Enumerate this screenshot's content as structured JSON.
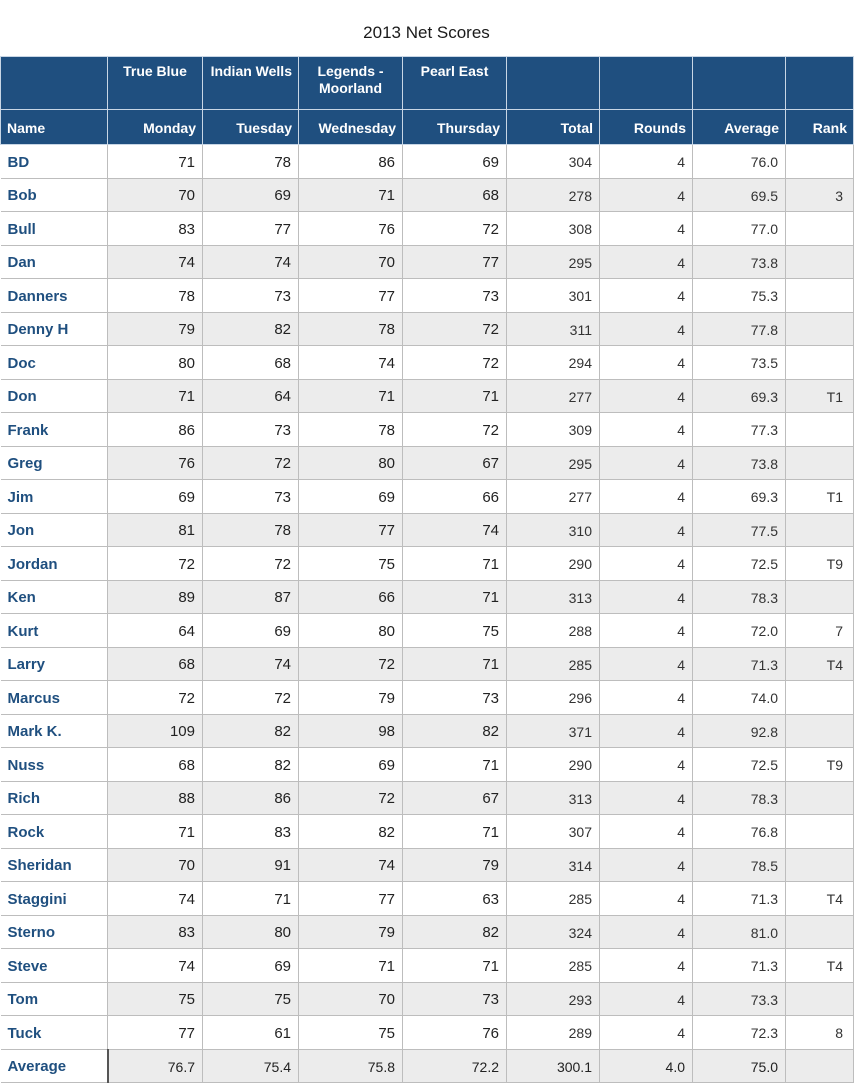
{
  "title": "2013 Net Scores",
  "headers": {
    "courses": [
      "",
      "True Blue",
      "Indian Wells",
      "Legends - Moorland",
      "Pearl East",
      "",
      "",
      "",
      ""
    ],
    "columns": [
      "Name",
      "Monday",
      "Tuesday",
      "Wednesday",
      "Thursday",
      "Total",
      "Rounds",
      "Average",
      "Rank"
    ]
  },
  "rows": [
    {
      "name": "BD",
      "mon": "71",
      "tue": "78",
      "wed": "86",
      "thu": "69",
      "total": "304",
      "rounds": "4",
      "avg": "76.0",
      "rank": ""
    },
    {
      "name": "Bob",
      "mon": "70",
      "tue": "69",
      "wed": "71",
      "thu": "68",
      "total": "278",
      "rounds": "4",
      "avg": "69.5",
      "rank": "3"
    },
    {
      "name": "Bull",
      "mon": "83",
      "tue": "77",
      "wed": "76",
      "thu": "72",
      "total": "308",
      "rounds": "4",
      "avg": "77.0",
      "rank": ""
    },
    {
      "name": "Dan",
      "mon": "74",
      "tue": "74",
      "wed": "70",
      "thu": "77",
      "total": "295",
      "rounds": "4",
      "avg": "73.8",
      "rank": ""
    },
    {
      "name": "Danners",
      "mon": "78",
      "tue": "73",
      "wed": "77",
      "thu": "73",
      "total": "301",
      "rounds": "4",
      "avg": "75.3",
      "rank": ""
    },
    {
      "name": "Denny H",
      "mon": "79",
      "tue": "82",
      "wed": "78",
      "thu": "72",
      "total": "311",
      "rounds": "4",
      "avg": "77.8",
      "rank": ""
    },
    {
      "name": "Doc",
      "mon": "80",
      "tue": "68",
      "wed": "74",
      "thu": "72",
      "total": "294",
      "rounds": "4",
      "avg": "73.5",
      "rank": ""
    },
    {
      "name": "Don",
      "mon": "71",
      "tue": "64",
      "wed": "71",
      "thu": "71",
      "total": "277",
      "rounds": "4",
      "avg": "69.3",
      "rank": "T1"
    },
    {
      "name": "Frank",
      "mon": "86",
      "tue": "73",
      "wed": "78",
      "thu": "72",
      "total": "309",
      "rounds": "4",
      "avg": "77.3",
      "rank": ""
    },
    {
      "name": "Greg",
      "mon": "76",
      "tue": "72",
      "wed": "80",
      "thu": "67",
      "total": "295",
      "rounds": "4",
      "avg": "73.8",
      "rank": ""
    },
    {
      "name": "Jim",
      "mon": "69",
      "tue": "73",
      "wed": "69",
      "thu": "66",
      "total": "277",
      "rounds": "4",
      "avg": "69.3",
      "rank": "T1"
    },
    {
      "name": "Jon",
      "mon": "81",
      "tue": "78",
      "wed": "77",
      "thu": "74",
      "total": "310",
      "rounds": "4",
      "avg": "77.5",
      "rank": ""
    },
    {
      "name": "Jordan",
      "mon": "72",
      "tue": "72",
      "wed": "75",
      "thu": "71",
      "total": "290",
      "rounds": "4",
      "avg": "72.5",
      "rank": "T9"
    },
    {
      "name": "Ken",
      "mon": "89",
      "tue": "87",
      "wed": "66",
      "thu": "71",
      "total": "313",
      "rounds": "4",
      "avg": "78.3",
      "rank": ""
    },
    {
      "name": "Kurt",
      "mon": "64",
      "tue": "69",
      "wed": "80",
      "thu": "75",
      "total": "288",
      "rounds": "4",
      "avg": "72.0",
      "rank": "7"
    },
    {
      "name": "Larry",
      "mon": "68",
      "tue": "74",
      "wed": "72",
      "thu": "71",
      "total": "285",
      "rounds": "4",
      "avg": "71.3",
      "rank": "T4"
    },
    {
      "name": "Marcus",
      "mon": "72",
      "tue": "72",
      "wed": "79",
      "thu": "73",
      "total": "296",
      "rounds": "4",
      "avg": "74.0",
      "rank": ""
    },
    {
      "name": "Mark K.",
      "mon": "109",
      "tue": "82",
      "wed": "98",
      "thu": "82",
      "total": "371",
      "rounds": "4",
      "avg": "92.8",
      "rank": ""
    },
    {
      "name": "Nuss",
      "mon": "68",
      "tue": "82",
      "wed": "69",
      "thu": "71",
      "total": "290",
      "rounds": "4",
      "avg": "72.5",
      "rank": "T9"
    },
    {
      "name": "Rich",
      "mon": "88",
      "tue": "86",
      "wed": "72",
      "thu": "67",
      "total": "313",
      "rounds": "4",
      "avg": "78.3",
      "rank": ""
    },
    {
      "name": "Rock",
      "mon": "71",
      "tue": "83",
      "wed": "82",
      "thu": "71",
      "total": "307",
      "rounds": "4",
      "avg": "76.8",
      "rank": ""
    },
    {
      "name": "Sheridan",
      "mon": "70",
      "tue": "91",
      "wed": "74",
      "thu": "79",
      "total": "314",
      "rounds": "4",
      "avg": "78.5",
      "rank": ""
    },
    {
      "name": "Staggini",
      "mon": "74",
      "tue": "71",
      "wed": "77",
      "thu": "63",
      "total": "285",
      "rounds": "4",
      "avg": "71.3",
      "rank": "T4"
    },
    {
      "name": "Sterno",
      "mon": "83",
      "tue": "80",
      "wed": "79",
      "thu": "82",
      "total": "324",
      "rounds": "4",
      "avg": "81.0",
      "rank": ""
    },
    {
      "name": "Steve",
      "mon": "74",
      "tue": "69",
      "wed": "71",
      "thu": "71",
      "total": "285",
      "rounds": "4",
      "avg": "71.3",
      "rank": "T4"
    },
    {
      "name": "Tom",
      "mon": "75",
      "tue": "75",
      "wed": "70",
      "thu": "73",
      "total": "293",
      "rounds": "4",
      "avg": "73.3",
      "rank": ""
    },
    {
      "name": "Tuck",
      "mon": "77",
      "tue": "61",
      "wed": "75",
      "thu": "76",
      "total": "289",
      "rounds": "4",
      "avg": "72.3",
      "rank": "8"
    }
  ],
  "average_row": {
    "name": "Average",
    "mon": "76.7",
    "tue": "75.4",
    "wed": "75.8",
    "thu": "72.2",
    "total": "300.1",
    "rounds": "4.0",
    "avg": "75.0",
    "rank": ""
  },
  "colors": {
    "header_bg": "#1f4f7f",
    "name_text": "#1f4f7f",
    "alt_row": "#ececec"
  }
}
